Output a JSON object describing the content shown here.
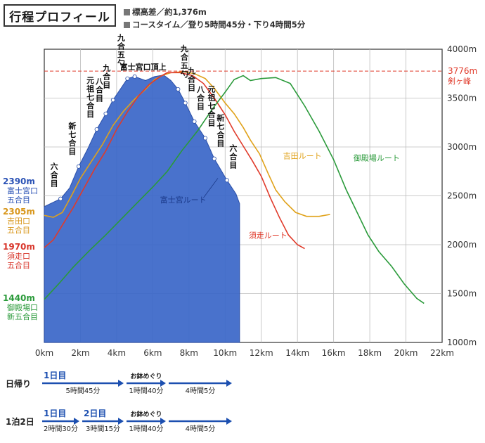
{
  "header": {
    "title": "行程プロフィール",
    "meta_elevation": "標高差／約1,376m",
    "meta_coursetime": "コースタイム／登り5時間45分・下り4時間5分"
  },
  "chart_data": {
    "type": "area",
    "xlabel": "",
    "ylabel": "",
    "xlim": [
      0,
      22
    ],
    "ylim": [
      1000,
      4000
    ],
    "x_ticks": [
      "0km",
      "2km",
      "4km",
      "6km",
      "8km",
      "10km",
      "12km",
      "14km",
      "16km",
      "18km",
      "20km",
      "22km"
    ],
    "y_ticks": [
      "1000m",
      "1500m",
      "2000m",
      "2500m",
      "3000m",
      "3500m",
      "4000m"
    ],
    "grid": true,
    "peak_line": {
      "value": 3776,
      "label_value": "3776m",
      "label_name": "剣ヶ峰",
      "color": "#e03a2a"
    },
    "series": [
      {
        "name": "富士宮ルート",
        "color": "#3a66c8",
        "fill": true,
        "points": [
          [
            0,
            2390
          ],
          [
            0.9,
            2470
          ],
          [
            1.4,
            2580
          ],
          [
            1.9,
            2800
          ],
          [
            2.4,
            2980
          ],
          [
            2.9,
            3180
          ],
          [
            3.4,
            3340
          ],
          [
            3.8,
            3480
          ],
          [
            4.2,
            3590
          ],
          [
            4.6,
            3700
          ],
          [
            5.0,
            3720
          ],
          [
            5.6,
            3680
          ],
          [
            6.1,
            3720
          ],
          [
            6.6,
            3735
          ],
          [
            7.0,
            3680
          ],
          [
            7.4,
            3590
          ],
          [
            7.8,
            3450
          ],
          [
            8.3,
            3260
          ],
          [
            8.9,
            3090
          ],
          [
            9.4,
            2880
          ],
          [
            10.1,
            2660
          ],
          [
            10.6,
            2520
          ],
          [
            10.8,
            2420
          ]
        ]
      },
      {
        "name": "吉田ルート",
        "color": "#e0a21a",
        "points": [
          [
            0,
            2300
          ],
          [
            0.5,
            2280
          ],
          [
            1.0,
            2330
          ],
          [
            1.5,
            2500
          ],
          [
            2.0,
            2680
          ],
          [
            2.6,
            2850
          ],
          [
            3.2,
            3020
          ],
          [
            3.8,
            3220
          ],
          [
            4.4,
            3370
          ],
          [
            5.0,
            3490
          ],
          [
            5.6,
            3590
          ],
          [
            6.1,
            3690
          ],
          [
            6.5,
            3730
          ],
          [
            7.0,
            3760
          ],
          [
            7.7,
            3770
          ],
          [
            8.3,
            3750
          ],
          [
            8.9,
            3700
          ],
          [
            9.4,
            3600
          ],
          [
            10.0,
            3450
          ],
          [
            10.5,
            3340
          ],
          [
            11.0,
            3200
          ],
          [
            11.4,
            3070
          ],
          [
            11.9,
            2930
          ],
          [
            12.4,
            2720
          ],
          [
            12.8,
            2560
          ],
          [
            13.3,
            2440
          ],
          [
            13.9,
            2330
          ],
          [
            14.5,
            2290
          ],
          [
            15.2,
            2290
          ],
          [
            15.8,
            2310
          ]
        ]
      },
      {
        "name": "須走ルート",
        "color": "#e03a2a",
        "points": [
          [
            0,
            1970
          ],
          [
            0.5,
            2050
          ],
          [
            1.0,
            2200
          ],
          [
            1.6,
            2380
          ],
          [
            2.2,
            2580
          ],
          [
            2.8,
            2780
          ],
          [
            3.4,
            2960
          ],
          [
            4.0,
            3180
          ],
          [
            4.6,
            3360
          ],
          [
            5.2,
            3520
          ],
          [
            5.8,
            3640
          ],
          [
            6.4,
            3720
          ],
          [
            6.8,
            3760
          ],
          [
            7.5,
            3760
          ],
          [
            8.2,
            3730
          ],
          [
            8.8,
            3650
          ],
          [
            9.4,
            3500
          ],
          [
            10.0,
            3330
          ],
          [
            10.5,
            3160
          ],
          [
            11.0,
            3010
          ],
          [
            11.5,
            2860
          ],
          [
            12.0,
            2700
          ],
          [
            12.5,
            2480
          ],
          [
            13.0,
            2280
          ],
          [
            13.5,
            2100
          ],
          [
            14.0,
            2000
          ],
          [
            14.4,
            1960
          ]
        ]
      },
      {
        "name": "御殿場ルート",
        "color": "#2a9a3a",
        "points": [
          [
            0,
            1440
          ],
          [
            0.8,
            1600
          ],
          [
            1.6,
            1770
          ],
          [
            2.5,
            1940
          ],
          [
            3.4,
            2100
          ],
          [
            4.3,
            2270
          ],
          [
            5.2,
            2440
          ],
          [
            6.0,
            2590
          ],
          [
            6.8,
            2750
          ],
          [
            7.6,
            2960
          ],
          [
            8.5,
            3170
          ],
          [
            9.3,
            3390
          ],
          [
            10.0,
            3560
          ],
          [
            10.5,
            3690
          ],
          [
            11.0,
            3730
          ],
          [
            11.4,
            3680
          ],
          [
            12.0,
            3700
          ],
          [
            12.8,
            3710
          ],
          [
            13.6,
            3650
          ],
          [
            14.4,
            3420
          ],
          [
            15.2,
            3160
          ],
          [
            16.0,
            2870
          ],
          [
            16.7,
            2560
          ],
          [
            17.3,
            2330
          ],
          [
            17.9,
            2100
          ],
          [
            18.5,
            1930
          ],
          [
            19.2,
            1780
          ],
          [
            19.9,
            1600
          ],
          [
            20.6,
            1450
          ],
          [
            21.0,
            1400
          ]
        ]
      }
    ],
    "stations": [
      {
        "name": "富士宮口五合目",
        "value": 2390
      },
      {
        "name": "六合目",
        "x": 0.9
      },
      {
        "name": "新七合目",
        "x": 1.9
      },
      {
        "name": "元祖七合目",
        "x": 2.9
      },
      {
        "name": "八合目",
        "x": 3.4
      },
      {
        "name": "九合目",
        "x": 3.8
      },
      {
        "name": "九合五勺",
        "x": 4.6
      },
      {
        "name": "富士宮口頂上",
        "x": 5.0
      },
      {
        "name": "九合五勺",
        "x": 7.4
      },
      {
        "name": "九合目",
        "x": 7.8
      },
      {
        "name": "八合目",
        "x": 8.3
      },
      {
        "name": "元祖七合目",
        "x": 8.9
      },
      {
        "name": "新七合目",
        "x": 9.4
      },
      {
        "name": "六合目",
        "x": 10.1
      }
    ],
    "start_labels": [
      {
        "value_label": "2390m",
        "lines": [
          "富士宮口",
          "五合目"
        ],
        "color": "#2a52b5"
      },
      {
        "value_label": "2305m",
        "lines": [
          "吉田口",
          "五合目"
        ],
        "color": "#d8961a"
      },
      {
        "value_label": "1970m",
        "lines": [
          "須走口",
          "五合目"
        ],
        "color": "#d8352a"
      },
      {
        "value_label": "1440m",
        "lines": [
          "御殿場口",
          "新五合目"
        ],
        "color": "#2a9a3a"
      }
    ]
  },
  "schedule": {
    "day_trip": {
      "label": "日帰り",
      "segments": [
        {
          "day": "1日目",
          "time": "5時間45分"
        },
        {
          "day": "お鉢めぐり",
          "time": "1時間40分"
        },
        {
          "day": "",
          "time": "4時間5分"
        }
      ]
    },
    "overnight": {
      "label": "1泊2日",
      "segments": [
        {
          "day": "1日目",
          "time": "2時間30分"
        },
        {
          "day": "2日目",
          "time": "3時間15分"
        },
        {
          "day": "お鉢めぐり",
          "time": "1時間40分"
        },
        {
          "day": "",
          "time": "4時間5分"
        }
      ]
    }
  }
}
